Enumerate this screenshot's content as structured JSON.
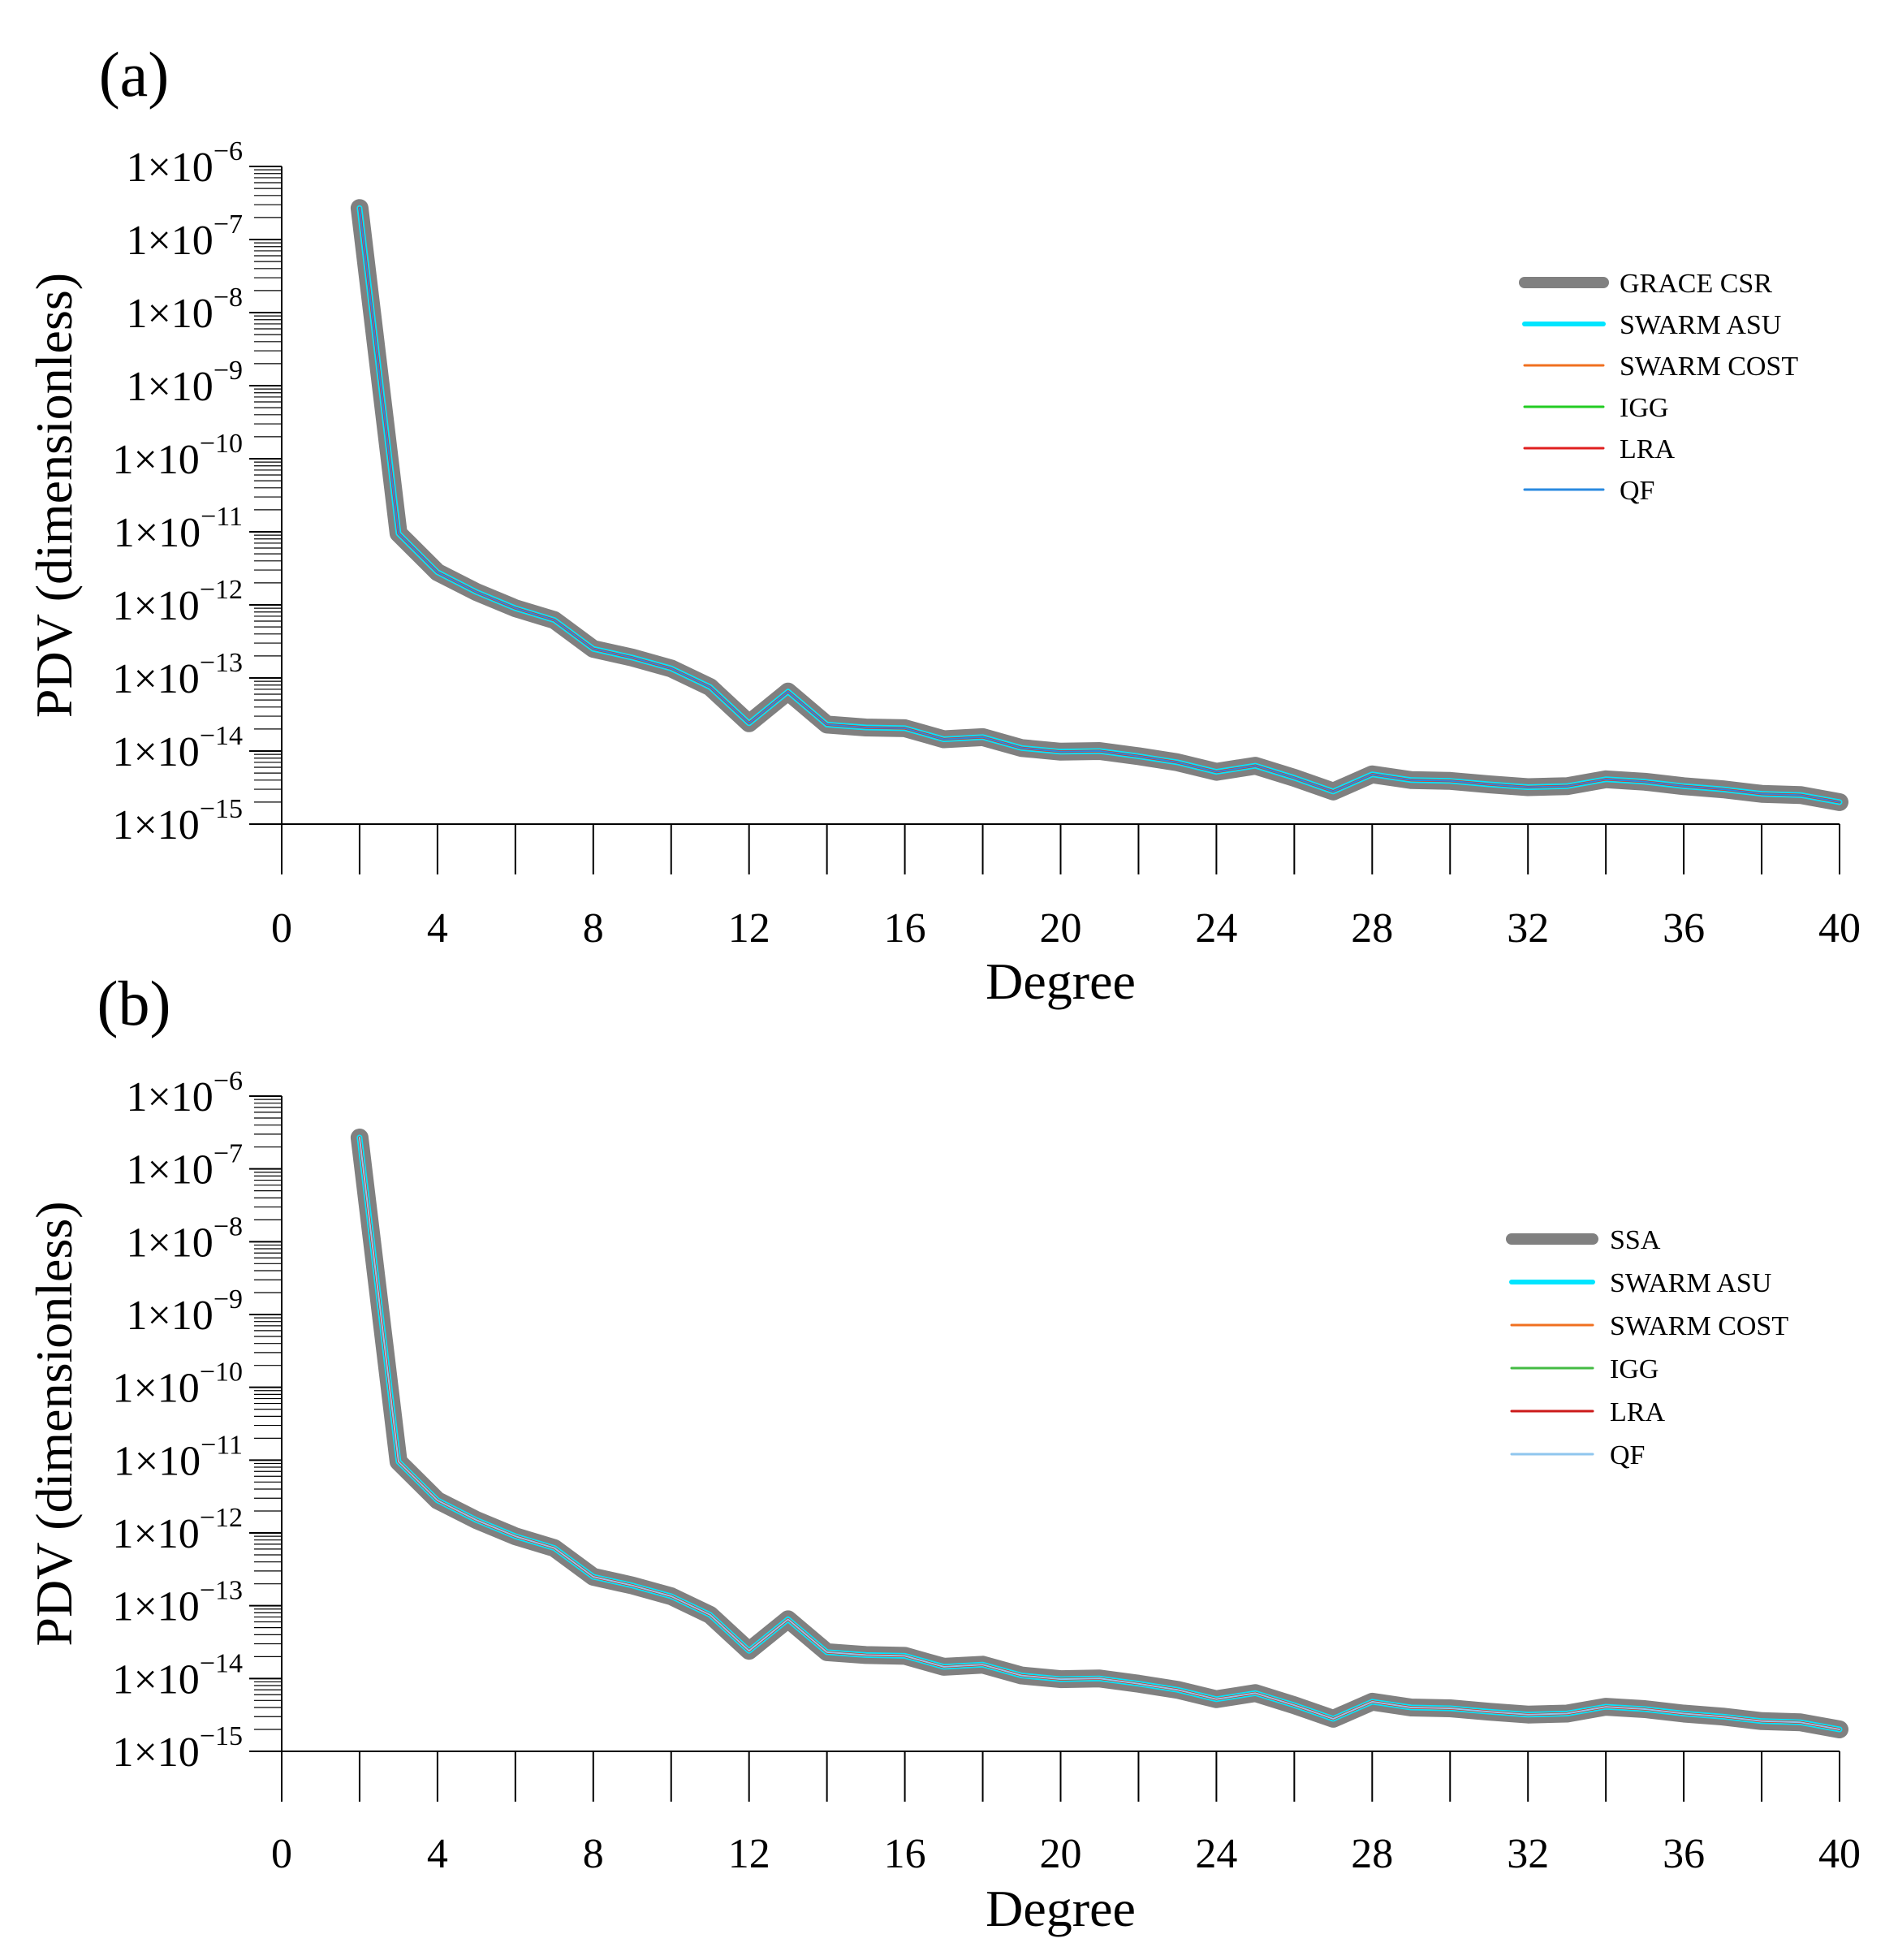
{
  "chart_data": [
    {
      "type": "line",
      "panel_label": "(a)",
      "xlabel": "Degree",
      "ylabel": "PDV (dimensionless)",
      "xlim": [
        0,
        40
      ],
      "xticks": [
        0,
        4,
        8,
        12,
        16,
        20,
        24,
        28,
        32,
        36,
        40
      ],
      "xtick_labels": [
        "0",
        "4",
        "8",
        "12",
        "16",
        "20",
        "24",
        "28",
        "32",
        "36",
        "40"
      ],
      "yscale": "log",
      "ylim_exponents": [
        -15,
        -6
      ],
      "ytick_exponents": [
        -6,
        -7,
        -8,
        -9,
        -10,
        -11,
        -12,
        -13,
        -14,
        -15
      ],
      "ytick_labels": [
        "1×10−6",
        "1×10−7",
        "1×10−8",
        "1×10−9",
        "1×10−10",
        "1×10−11",
        "1×10−12",
        "1×10−13",
        "1×10−14",
        "1×10−15"
      ],
      "ytick_mantissa": "1×10",
      "legend_position": "top-right",
      "x": [
        2,
        3,
        4,
        5,
        6,
        7,
        8,
        9,
        10,
        11,
        12,
        13,
        14,
        15,
        16,
        17,
        18,
        19,
        20,
        21,
        22,
        23,
        24,
        25,
        26,
        27,
        28,
        29,
        30,
        31,
        32,
        33,
        34,
        35,
        36,
        37,
        38,
        39,
        40
      ],
      "series": [
        {
          "name": "GRACE CSR",
          "color": "#808080",
          "values": [
            2.7e-07,
            9.5e-12,
            2.8e-12,
            1.5e-12,
            9e-13,
            6.2e-13,
            2.5e-13,
            1.9e-13,
            1.35e-13,
            7.5e-14,
            2.4e-14,
            6.5e-14,
            2.3e-14,
            2.1e-14,
            2.05e-14,
            1.45e-14,
            1.55e-14,
            1.1e-14,
            9.8e-15,
            1e-14,
            8.5e-15,
            7e-15,
            5.2e-15,
            6.3e-15,
            4.3e-15,
            2.8e-15,
            4.8e-15,
            4e-15,
            3.9e-15,
            3.5e-15,
            3.2e-15,
            3.3e-15,
            4.1e-15,
            3.8e-15,
            3.3e-15,
            3e-15,
            2.6e-15,
            2.5e-15,
            2e-15
          ]
        },
        {
          "name": "SWARM ASU",
          "color": "#00e5ff",
          "values": [
            2.7e-07,
            9.5e-12,
            2.8e-12,
            1.5e-12,
            9e-13,
            6.2e-13,
            2.5e-13,
            1.9e-13,
            1.35e-13,
            7.5e-14,
            2.4e-14,
            6.5e-14,
            2.3e-14,
            2.1e-14,
            2.05e-14,
            1.45e-14,
            1.55e-14,
            1.1e-14,
            9.8e-15,
            1e-14,
            8.5e-15,
            7e-15,
            5.2e-15,
            6.3e-15,
            4.3e-15,
            2.8e-15,
            4.8e-15,
            4e-15,
            3.9e-15,
            3.5e-15,
            3.2e-15,
            3.3e-15,
            4.1e-15,
            3.8e-15,
            3.3e-15,
            3e-15,
            2.6e-15,
            2.5e-15,
            2e-15
          ]
        },
        {
          "name": "SWARM COST",
          "color": "#f07020",
          "values": [
            2.7e-07,
            9.5e-12,
            2.8e-12,
            1.5e-12,
            9e-13,
            6.2e-13,
            2.5e-13,
            1.9e-13,
            1.35e-13,
            7.5e-14,
            2.4e-14,
            6.5e-14,
            2.3e-14,
            2.1e-14,
            2.05e-14,
            1.45e-14,
            1.55e-14,
            1.1e-14,
            9.8e-15,
            1e-14,
            8.5e-15,
            7e-15,
            5.2e-15,
            6.3e-15,
            4.3e-15,
            2.8e-15,
            4.8e-15,
            4e-15,
            3.9e-15,
            3.5e-15,
            3.2e-15,
            3.3e-15,
            4.1e-15,
            3.8e-15,
            3.3e-15,
            3e-15,
            2.6e-15,
            2.5e-15,
            2e-15
          ]
        },
        {
          "name": "IGG",
          "color": "#22cc22",
          "values": [
            2.7e-07,
            9.5e-12,
            2.8e-12,
            1.5e-12,
            9e-13,
            6.2e-13,
            2.5e-13,
            1.9e-13,
            1.35e-13,
            7.5e-14,
            2.4e-14,
            6.5e-14,
            2.3e-14,
            2.1e-14,
            2.05e-14,
            1.45e-14,
            1.55e-14,
            1.1e-14,
            9.8e-15,
            1e-14,
            8.5e-15,
            7e-15,
            5.2e-15,
            6.3e-15,
            4.3e-15,
            2.8e-15,
            4.8e-15,
            4e-15,
            3.9e-15,
            3.5e-15,
            3.2e-15,
            3.3e-15,
            4.1e-15,
            3.8e-15,
            3.3e-15,
            3e-15,
            2.6e-15,
            2.5e-15,
            2e-15
          ]
        },
        {
          "name": "LRA",
          "color": "#e02020",
          "values": [
            2.7e-07,
            9.5e-12,
            2.8e-12,
            1.5e-12,
            9e-13,
            6.2e-13,
            2.5e-13,
            1.9e-13,
            1.35e-13,
            7.5e-14,
            2.4e-14,
            6.5e-14,
            2.3e-14,
            2.1e-14,
            2.05e-14,
            1.45e-14,
            1.55e-14,
            1.1e-14,
            9.8e-15,
            1e-14,
            8.5e-15,
            7e-15,
            5.2e-15,
            6.3e-15,
            4.3e-15,
            2.8e-15,
            4.8e-15,
            4e-15,
            3.9e-15,
            3.5e-15,
            3.2e-15,
            3.3e-15,
            4.1e-15,
            3.8e-15,
            3.3e-15,
            3e-15,
            2.6e-15,
            2.5e-15,
            2e-15
          ]
        },
        {
          "name": "QF",
          "color": "#2a8ae0",
          "values": [
            2.7e-07,
            9.5e-12,
            2.8e-12,
            1.5e-12,
            9e-13,
            6.2e-13,
            2.5e-13,
            1.9e-13,
            1.35e-13,
            7.5e-14,
            2.4e-14,
            6.5e-14,
            2.3e-14,
            2.1e-14,
            2.05e-14,
            1.45e-14,
            1.55e-14,
            1.1e-14,
            9.8e-15,
            1e-14,
            8.5e-15,
            7e-15,
            5.2e-15,
            6.3e-15,
            4.3e-15,
            2.8e-15,
            4.8e-15,
            4e-15,
            3.9e-15,
            3.5e-15,
            3.2e-15,
            3.3e-15,
            4.1e-15,
            3.8e-15,
            3.3e-15,
            3e-15,
            2.6e-15,
            2.5e-15,
            2e-15
          ]
        }
      ]
    },
    {
      "type": "line",
      "panel_label": "(b)",
      "xlabel": "Degree",
      "ylabel": "PDV (dimensionless)",
      "xlim": [
        0,
        40
      ],
      "xticks": [
        0,
        4,
        8,
        12,
        16,
        20,
        24,
        28,
        32,
        36,
        40
      ],
      "xtick_labels": [
        "0",
        "4",
        "8",
        "12",
        "16",
        "20",
        "24",
        "28",
        "32",
        "36",
        "40"
      ],
      "yscale": "log",
      "ylim_exponents": [
        -15,
        -6
      ],
      "ytick_exponents": [
        -6,
        -7,
        -8,
        -9,
        -10,
        -11,
        -12,
        -13,
        -14,
        -15
      ],
      "ytick_labels": [
        "1×10−6",
        "1×10−7",
        "1×10−8",
        "1×10−9",
        "1×10−10",
        "1×10−11",
        "1×10−12",
        "1×10−13",
        "1×10−14",
        "1×10−15"
      ],
      "ytick_mantissa": "1×10",
      "legend_position": "top-right",
      "x": [
        2,
        3,
        4,
        5,
        6,
        7,
        8,
        9,
        10,
        11,
        12,
        13,
        14,
        15,
        16,
        17,
        18,
        19,
        20,
        21,
        22,
        23,
        24,
        25,
        26,
        27,
        28,
        29,
        30,
        31,
        32,
        33,
        34,
        35,
        36,
        37,
        38,
        39,
        40
      ],
      "series": [
        {
          "name": "SSA",
          "color": "#808080",
          "values": [
            2.7e-07,
            9.5e-12,
            2.8e-12,
            1.5e-12,
            9e-13,
            6.2e-13,
            2.5e-13,
            1.9e-13,
            1.35e-13,
            7.5e-14,
            2.4e-14,
            6.5e-14,
            2.3e-14,
            2.1e-14,
            2.05e-14,
            1.45e-14,
            1.55e-14,
            1.1e-14,
            9.8e-15,
            1e-14,
            8.5e-15,
            7e-15,
            5.2e-15,
            6.3e-15,
            4.3e-15,
            2.8e-15,
            4.8e-15,
            4e-15,
            3.9e-15,
            3.5e-15,
            3.2e-15,
            3.3e-15,
            4.1e-15,
            3.8e-15,
            3.3e-15,
            3e-15,
            2.6e-15,
            2.5e-15,
            2e-15
          ]
        },
        {
          "name": "SWARM ASU",
          "color": "#00e5ff",
          "values": [
            2.7e-07,
            9.5e-12,
            2.8e-12,
            1.5e-12,
            9e-13,
            6.2e-13,
            2.5e-13,
            1.9e-13,
            1.35e-13,
            7.5e-14,
            2.4e-14,
            6.5e-14,
            2.3e-14,
            2.1e-14,
            2.05e-14,
            1.45e-14,
            1.55e-14,
            1.1e-14,
            9.8e-15,
            1e-14,
            8.5e-15,
            7e-15,
            5.2e-15,
            6.3e-15,
            4.3e-15,
            2.8e-15,
            4.8e-15,
            4e-15,
            3.9e-15,
            3.5e-15,
            3.2e-15,
            3.3e-15,
            4.1e-15,
            3.8e-15,
            3.3e-15,
            3e-15,
            2.6e-15,
            2.5e-15,
            2e-15
          ]
        },
        {
          "name": "SWARM COST",
          "color": "#f07020",
          "values": [
            2.7e-07,
            9.5e-12,
            2.8e-12,
            1.5e-12,
            9e-13,
            6.2e-13,
            2.5e-13,
            1.9e-13,
            1.35e-13,
            7.5e-14,
            2.4e-14,
            6.5e-14,
            2.3e-14,
            2.1e-14,
            2.05e-14,
            1.45e-14,
            1.55e-14,
            1.1e-14,
            9.8e-15,
            1e-14,
            8.5e-15,
            7e-15,
            5.2e-15,
            6.3e-15,
            4.3e-15,
            2.8e-15,
            4.8e-15,
            4e-15,
            3.9e-15,
            3.5e-15,
            3.2e-15,
            3.3e-15,
            4.1e-15,
            3.8e-15,
            3.3e-15,
            3e-15,
            2.6e-15,
            2.5e-15,
            2e-15
          ]
        },
        {
          "name": "IGG",
          "color": "#44bb44",
          "values": [
            2.7e-07,
            9.5e-12,
            2.8e-12,
            1.5e-12,
            9e-13,
            6.2e-13,
            2.5e-13,
            1.9e-13,
            1.35e-13,
            7.5e-14,
            2.4e-14,
            6.5e-14,
            2.3e-14,
            2.1e-14,
            2.05e-14,
            1.45e-14,
            1.55e-14,
            1.1e-14,
            9.8e-15,
            1e-14,
            8.5e-15,
            7e-15,
            5.2e-15,
            6.3e-15,
            4.3e-15,
            2.8e-15,
            4.8e-15,
            4e-15,
            3.9e-15,
            3.5e-15,
            3.2e-15,
            3.3e-15,
            4.1e-15,
            3.8e-15,
            3.3e-15,
            3e-15,
            2.6e-15,
            2.5e-15,
            2e-15
          ]
        },
        {
          "name": "LRA",
          "color": "#cc1a1a",
          "values": [
            2.7e-07,
            9.5e-12,
            2.8e-12,
            1.5e-12,
            9e-13,
            6.2e-13,
            2.5e-13,
            1.9e-13,
            1.35e-13,
            7.5e-14,
            2.4e-14,
            6.5e-14,
            2.3e-14,
            2.1e-14,
            2.05e-14,
            1.45e-14,
            1.55e-14,
            1.1e-14,
            9.8e-15,
            1e-14,
            8.5e-15,
            7e-15,
            5.2e-15,
            6.3e-15,
            4.3e-15,
            2.8e-15,
            4.8e-15,
            4e-15,
            3.9e-15,
            3.5e-15,
            3.2e-15,
            3.3e-15,
            4.1e-15,
            3.8e-15,
            3.3e-15,
            3e-15,
            2.6e-15,
            2.5e-15,
            2e-15
          ]
        },
        {
          "name": "QF",
          "color": "#8fc6ee",
          "values": [
            2.7e-07,
            9.5e-12,
            2.8e-12,
            1.5e-12,
            9e-13,
            6.2e-13,
            2.5e-13,
            1.9e-13,
            1.35e-13,
            7.5e-14,
            2.4e-14,
            6.5e-14,
            2.3e-14,
            2.1e-14,
            2.05e-14,
            1.45e-14,
            1.55e-14,
            1.1e-14,
            9.8e-15,
            1e-14,
            8.5e-15,
            7e-15,
            5.2e-15,
            6.3e-15,
            4.3e-15,
            2.8e-15,
            4.8e-15,
            4e-15,
            3.9e-15,
            3.5e-15,
            3.2e-15,
            3.3e-15,
            4.1e-15,
            3.8e-15,
            3.3e-15,
            3e-15,
            2.6e-15,
            2.5e-15,
            2e-15
          ]
        }
      ]
    }
  ]
}
